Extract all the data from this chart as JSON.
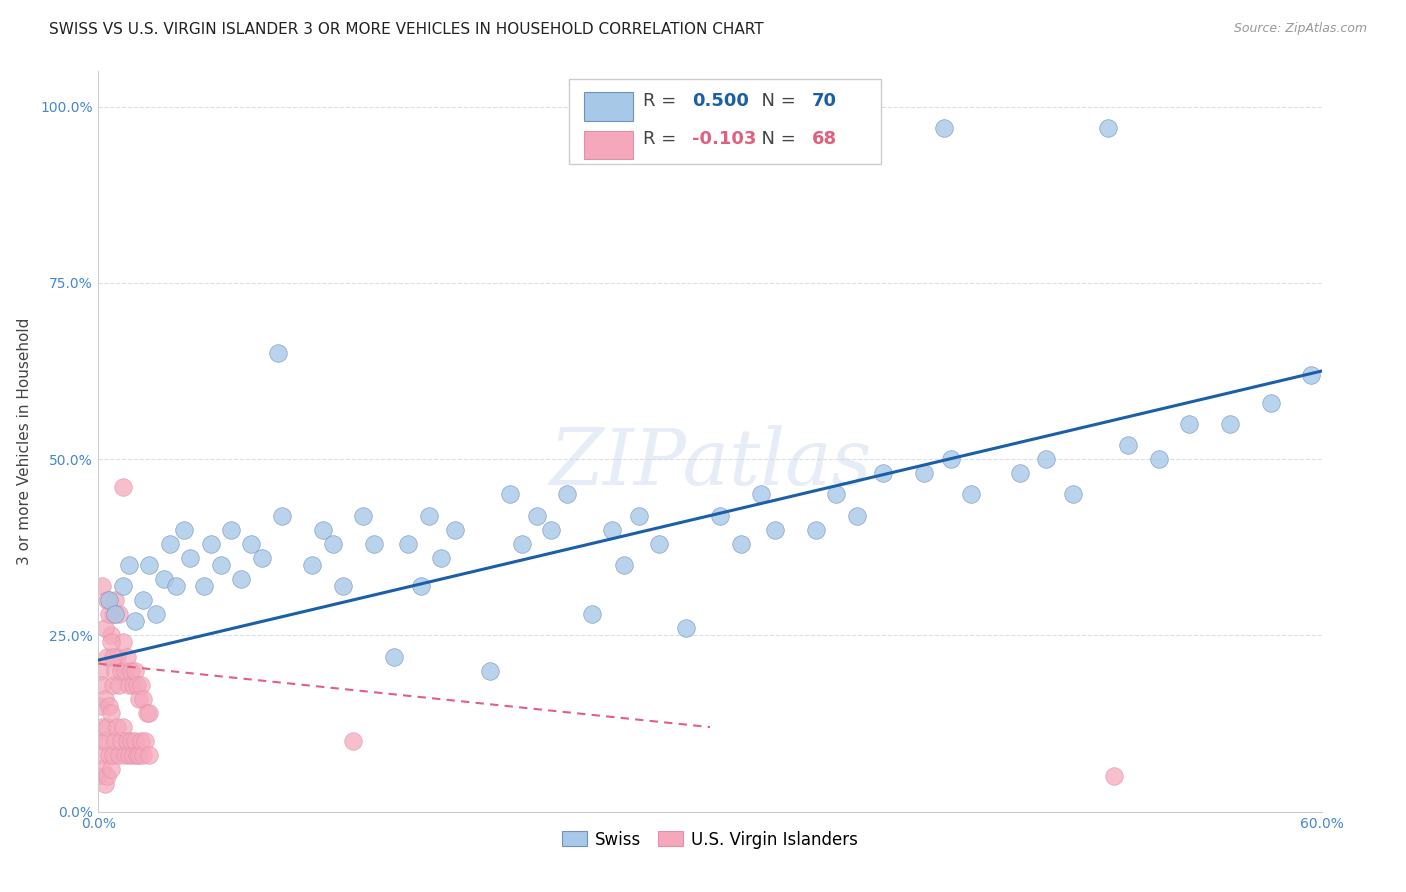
{
  "title": "SWISS VS U.S. VIRGIN ISLANDER 3 OR MORE VEHICLES IN HOUSEHOLD CORRELATION CHART",
  "source": "Source: ZipAtlas.com",
  "ylabel": "3 or more Vehicles in Household",
  "xmin": 0.0,
  "xmax": 0.6,
  "ymin": 0.0,
  "ymax": 1.05,
  "xticks": [
    0.0,
    0.1,
    0.2,
    0.3,
    0.4,
    0.5,
    0.6
  ],
  "xticklabels": [
    "0.0%",
    "",
    "",
    "",
    "",
    "",
    "60.0%"
  ],
  "yticks": [
    0.0,
    0.25,
    0.5,
    0.75,
    1.0
  ],
  "yticklabels": [
    "0.0%",
    "25.0%",
    "50.0%",
    "75.0%",
    "100.0%"
  ],
  "legend_swiss_R": "0.500",
  "legend_swiss_N": "70",
  "legend_vi_R": "-0.103",
  "legend_vi_N": "68",
  "swiss_color": "#a8c8e8",
  "vi_color": "#f5a8bc",
  "swiss_line_color": "#1a5fa8",
  "vi_line_color": "#e06080",
  "watermark": "ZIPatlas",
  "background_color": "#ffffff",
  "grid_color": "#d8dfe8",
  "title_fontsize": 11,
  "axis_label_fontsize": 11,
  "tick_fontsize": 10,
  "tick_color": "#4488cc"
}
